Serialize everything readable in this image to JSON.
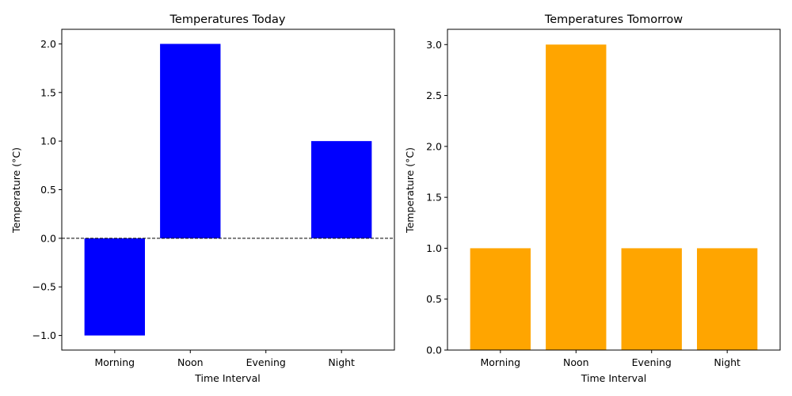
{
  "chart_data": [
    {
      "type": "bar",
      "title": "Temperatures Today",
      "xlabel": "Time Interval",
      "ylabel": "Temperature (°C)",
      "categories": [
        "Morning",
        "Noon",
        "Evening",
        "Night"
      ],
      "values": [
        -1,
        2,
        0,
        1
      ],
      "ylim": [
        -1.15,
        2.15
      ],
      "yticks": [
        -1.0,
        -0.5,
        0.0,
        0.5,
        1.0,
        1.5,
        2.0
      ],
      "ytick_labels": [
        "−1.0",
        "−0.5",
        "0.0",
        "0.5",
        "1.0",
        "1.5",
        "2.0"
      ],
      "color": "#0000ff",
      "zero_line": "dashed",
      "grid": false
    },
    {
      "type": "bar",
      "title": "Temperatures Tomorrow",
      "xlabel": "Time Interval",
      "ylabel": "Temperature (°C)",
      "categories": [
        "Morning",
        "Noon",
        "Evening",
        "Night"
      ],
      "values": [
        1,
        3,
        1,
        1
      ],
      "ylim": [
        0,
        3.15
      ],
      "yticks": [
        0.0,
        0.5,
        1.0,
        1.5,
        2.0,
        2.5,
        3.0
      ],
      "ytick_labels": [
        "0.0",
        "0.5",
        "1.0",
        "1.5",
        "2.0",
        "2.5",
        "3.0"
      ],
      "color": "#ffa500",
      "zero_line": "dashed",
      "grid": false
    }
  ]
}
